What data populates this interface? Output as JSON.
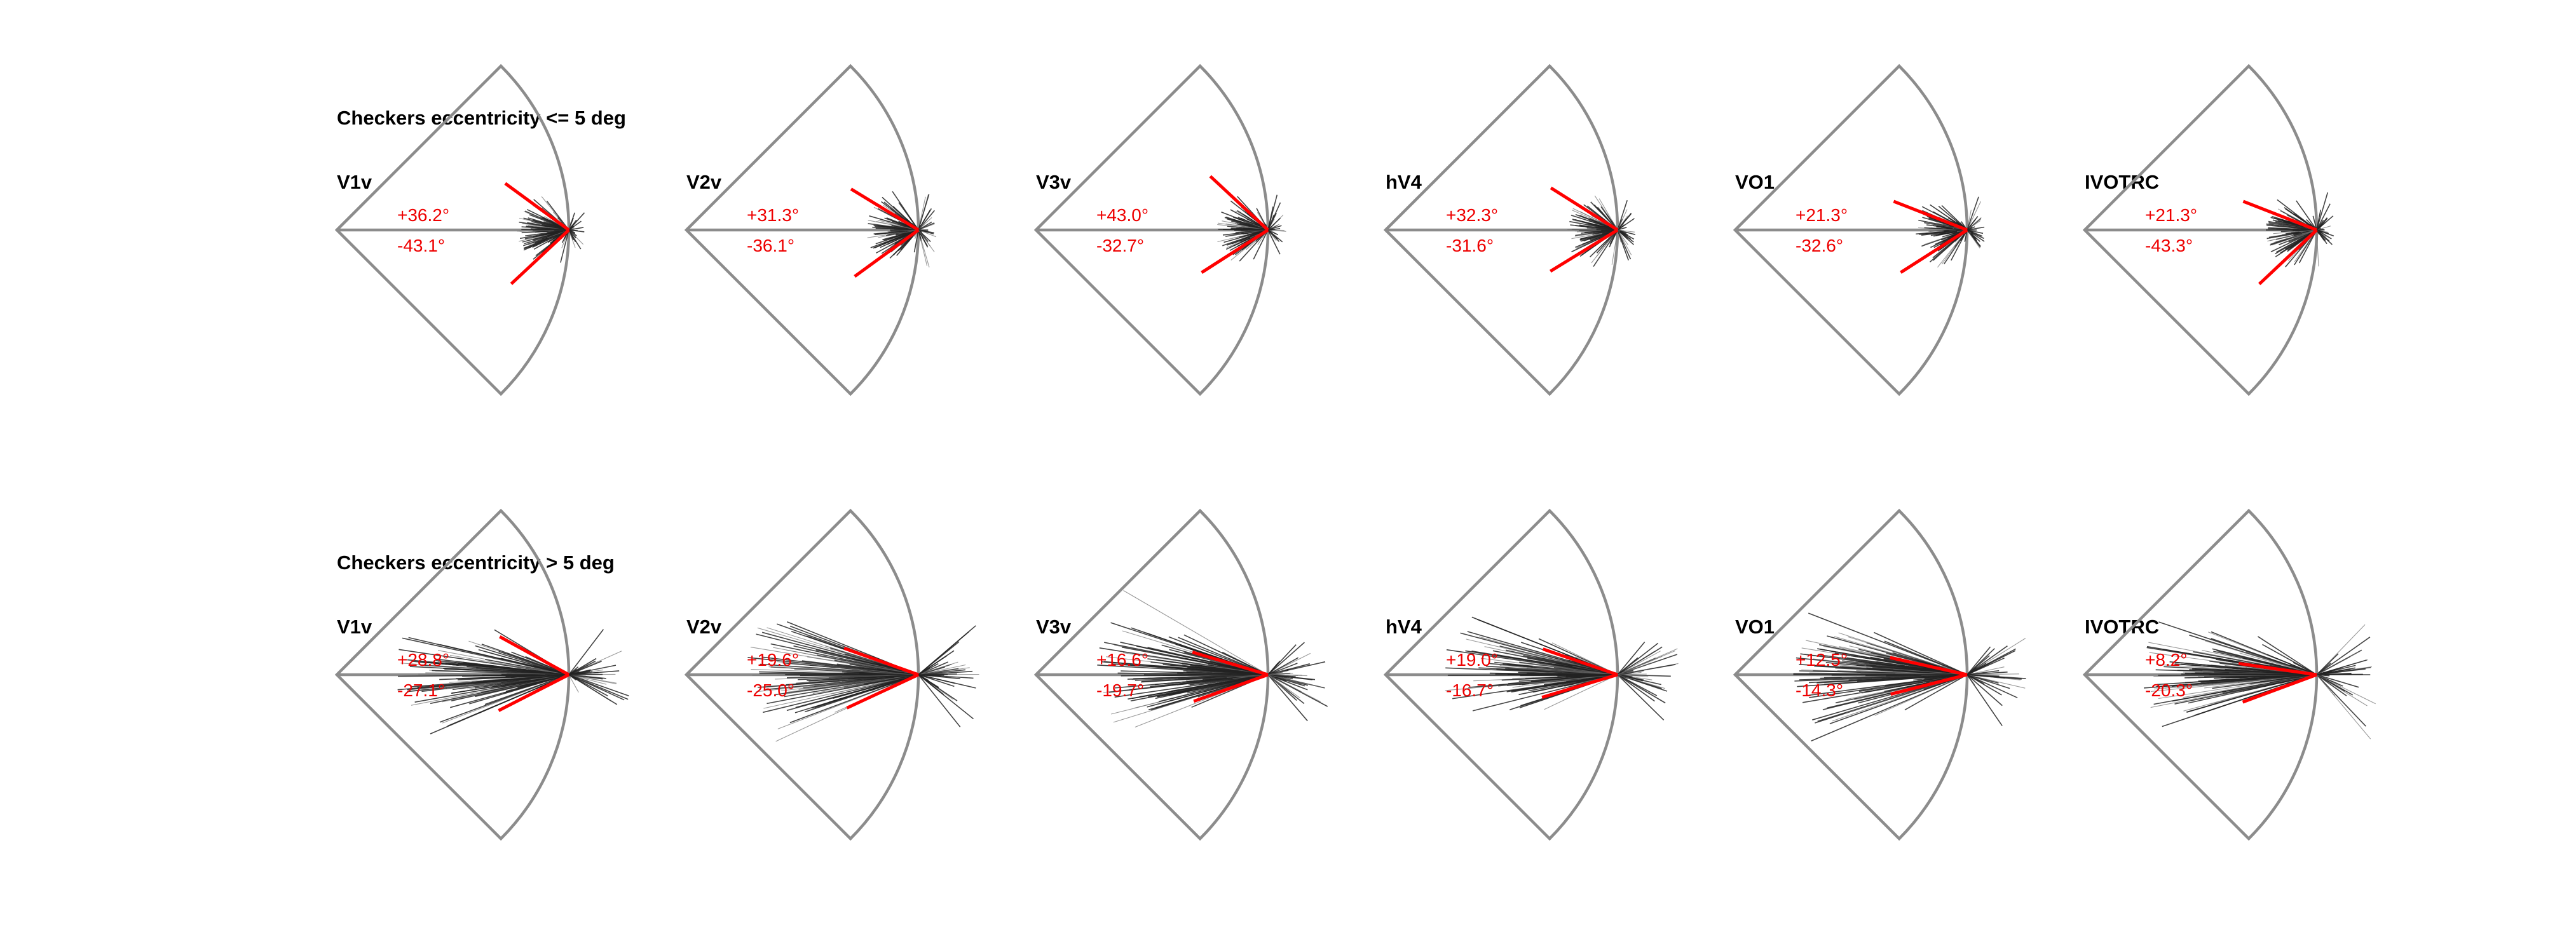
{
  "figure": {
    "rows": [
      {
        "title": "Checkers eccentricity <= 5 deg"
      },
      {
        "title": "Checkers eccentricity > 5 deg"
      }
    ]
  },
  "chart_data": [
    {
      "type": "polar-fan",
      "row": 0,
      "title": "V1v",
      "upper_angle": 36.2,
      "lower_angle": -43.1,
      "upper_label": "+36.2°",
      "lower_label": "-43.1°",
      "sector_deg": [
        -45,
        45
      ]
    },
    {
      "type": "polar-fan",
      "row": 0,
      "title": "V2v",
      "upper_angle": 31.3,
      "lower_angle": -36.1,
      "upper_label": "+31.3°",
      "lower_label": "-36.1°",
      "sector_deg": [
        -45,
        45
      ]
    },
    {
      "type": "polar-fan",
      "row": 0,
      "title": "V3v",
      "upper_angle": 43.0,
      "lower_angle": -32.7,
      "upper_label": "+43.0°",
      "lower_label": "-32.7°",
      "sector_deg": [
        -45,
        45
      ]
    },
    {
      "type": "polar-fan",
      "row": 0,
      "title": "hV4",
      "upper_angle": 32.3,
      "lower_angle": -31.6,
      "upper_label": "+32.3°",
      "lower_label": "-31.6°",
      "sector_deg": [
        -45,
        45
      ]
    },
    {
      "type": "polar-fan",
      "row": 0,
      "title": "VO1",
      "upper_angle": 21.3,
      "lower_angle": -32.6,
      "upper_label": "+21.3°",
      "lower_label": "-32.6°",
      "sector_deg": [
        -45,
        45
      ]
    },
    {
      "type": "polar-fan",
      "row": 0,
      "title": "IVOTRC",
      "upper_angle": 21.3,
      "lower_angle": -43.3,
      "upper_label": "+21.3°",
      "lower_label": "-43.3°",
      "sector_deg": [
        -45,
        45
      ]
    },
    {
      "type": "polar-fan",
      "row": 1,
      "title": "V1v",
      "upper_angle": 28.8,
      "lower_angle": -27.1,
      "upper_label": "+28.8°",
      "lower_label": "-27.1°",
      "sector_deg": [
        -45,
        45
      ]
    },
    {
      "type": "polar-fan",
      "row": 1,
      "title": "V2v",
      "upper_angle": 19.6,
      "lower_angle": -25.0,
      "upper_label": "+19.6°",
      "lower_label": "-25.0°",
      "sector_deg": [
        -45,
        45
      ]
    },
    {
      "type": "polar-fan",
      "row": 1,
      "title": "V3v",
      "upper_angle": 16.6,
      "lower_angle": -19.7,
      "upper_label": "+16.6°",
      "lower_label": "-19.7°",
      "sector_deg": [
        -45,
        45
      ]
    },
    {
      "type": "polar-fan",
      "row": 1,
      "title": "hV4",
      "upper_angle": 19.0,
      "lower_angle": -16.7,
      "upper_label": "+19.0°",
      "lower_label": "-16.7°",
      "sector_deg": [
        -45,
        45
      ]
    },
    {
      "type": "polar-fan",
      "row": 1,
      "title": "VO1",
      "upper_angle": 12.5,
      "lower_angle": -14.3,
      "upper_label": "+12.5°",
      "lower_label": "-14.3°",
      "sector_deg": [
        -45,
        45
      ]
    },
    {
      "type": "polar-fan",
      "row": 1,
      "title": "IVOTRC",
      "upper_angle": 8.2,
      "lower_angle": -20.3,
      "upper_label": "+8.2°",
      "lower_label": "-20.3°",
      "sector_deg": [
        -45,
        45
      ]
    }
  ],
  "colors": {
    "sector_outline": "#8c8c8c",
    "fan_lines_dense": "#222222",
    "fan_lines_light": "#6e6e6e",
    "angle_lines": "#ff0000",
    "angle_text": "#ee0000"
  }
}
